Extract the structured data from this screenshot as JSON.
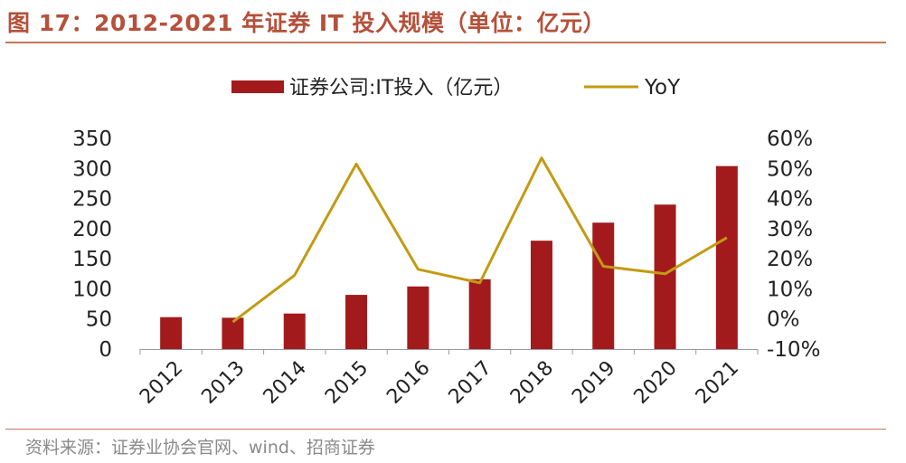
{
  "figure": {
    "title": "图 17：2012-2021 年证券 IT 投入规模（单位：亿元）",
    "source": "资料来源：证券业协会官网、wind、招商证券"
  },
  "colors": {
    "bar": "#a31a1c",
    "line": "#c39a12",
    "title": "#b5503a",
    "rule": "#c8765a",
    "source": "#8a8a8a",
    "axis_text": "#222222"
  },
  "chart_data": {
    "type": "bar",
    "categories": [
      "2012",
      "2013",
      "2014",
      "2015",
      "2016",
      "2017",
      "2018",
      "2019",
      "2020",
      "2021"
    ],
    "series": [
      {
        "name": "证券公司:IT投入（亿元）",
        "type": "bar",
        "axis": "left",
        "values": [
          53,
          52,
          59,
          90,
          104,
          116,
          180,
          210,
          240,
          304
        ]
      },
      {
        "name": "YoY",
        "type": "line",
        "axis": "right",
        "values": [
          null,
          -0.01,
          0.145,
          0.515,
          0.165,
          0.12,
          0.535,
          0.175,
          0.15,
          0.27
        ]
      }
    ],
    "ylim": [
      0,
      350
    ],
    "yticks": [
      "0",
      "50",
      "100",
      "150",
      "200",
      "250",
      "300",
      "350"
    ],
    "y2lim": [
      -0.1,
      0.6
    ],
    "y2ticks": [
      "-10%",
      "0%",
      "10%",
      "20%",
      "30%",
      "40%",
      "50%",
      "60%"
    ],
    "legend": "top-center",
    "grid": false
  }
}
